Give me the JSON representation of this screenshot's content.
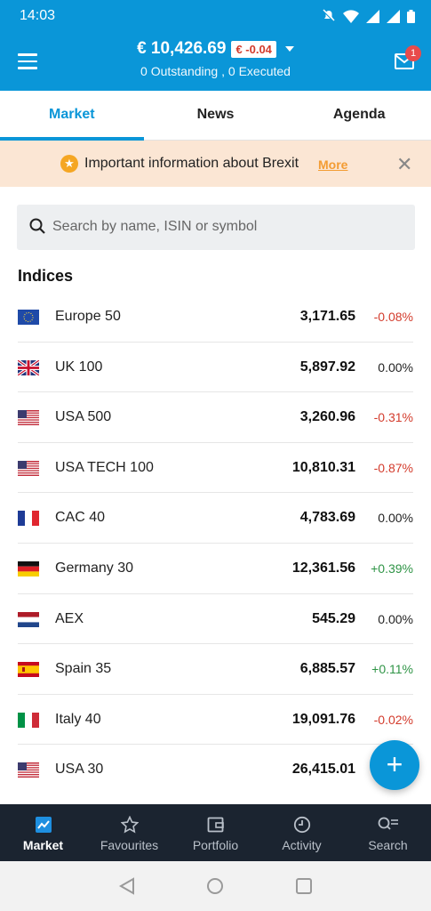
{
  "status": {
    "time": "14:03"
  },
  "header": {
    "balance": "€ 10,426.69",
    "delta": "€ -0.04",
    "orders": "0 Outstanding , 0 Executed",
    "mail_badge": "1"
  },
  "tabs": [
    {
      "label": "Market",
      "active": true
    },
    {
      "label": "News",
      "active": false
    },
    {
      "label": "Agenda",
      "active": false
    }
  ],
  "notice": {
    "text": "Important information about Brexit",
    "link": "More"
  },
  "search": {
    "placeholder": "Search by name, ISIN or symbol"
  },
  "section": {
    "title": "Indices"
  },
  "indices": [
    {
      "name": "Europe 50",
      "price": "3,171.65",
      "change": "-0.08%",
      "dir": "neg",
      "flag": "eu-flag-icon"
    },
    {
      "name": "UK 100",
      "price": "5,897.92",
      "change": "0.00%",
      "dir": "neu",
      "flag": "uk-flag-icon"
    },
    {
      "name": "USA 500",
      "price": "3,260.96",
      "change": "-0.31%",
      "dir": "neg",
      "flag": "us-flag-icon"
    },
    {
      "name": "USA TECH 100",
      "price": "10,810.31",
      "change": "-0.87%",
      "dir": "neg",
      "flag": "us-flag-icon"
    },
    {
      "name": "CAC 40",
      "price": "4,783.69",
      "change": "0.00%",
      "dir": "neu",
      "flag": "fr-flag-icon"
    },
    {
      "name": "Germany 30",
      "price": "12,361.56",
      "change": "+0.39%",
      "dir": "pos",
      "flag": "de-flag-icon"
    },
    {
      "name": "AEX",
      "price": "545.29",
      "change": "0.00%",
      "dir": "neu",
      "flag": "nl-flag-icon"
    },
    {
      "name": "Spain 35",
      "price": "6,885.57",
      "change": "+0.11%",
      "dir": "pos",
      "flag": "es-flag-icon"
    },
    {
      "name": "Italy 40",
      "price": "19,091.76",
      "change": "-0.02%",
      "dir": "neg",
      "flag": "it-flag-icon"
    },
    {
      "name": "USA 30",
      "price": "26,415.01",
      "change": "",
      "dir": "neu",
      "flag": "us-flag-icon"
    }
  ],
  "bottom_nav": [
    {
      "label": "Market",
      "icon": "chart-icon",
      "active": true
    },
    {
      "label": "Favourites",
      "icon": "star-icon",
      "active": false
    },
    {
      "label": "Portfolio",
      "icon": "wallet-icon",
      "active": false
    },
    {
      "label": "Activity",
      "icon": "clock-icon",
      "active": false
    },
    {
      "label": "Search",
      "icon": "search-list-icon",
      "active": false
    }
  ],
  "colors": {
    "accent": "#0a96d8",
    "negative": "#d33b2c",
    "positive": "#2f9446",
    "nav_bg": "#1b2430"
  }
}
